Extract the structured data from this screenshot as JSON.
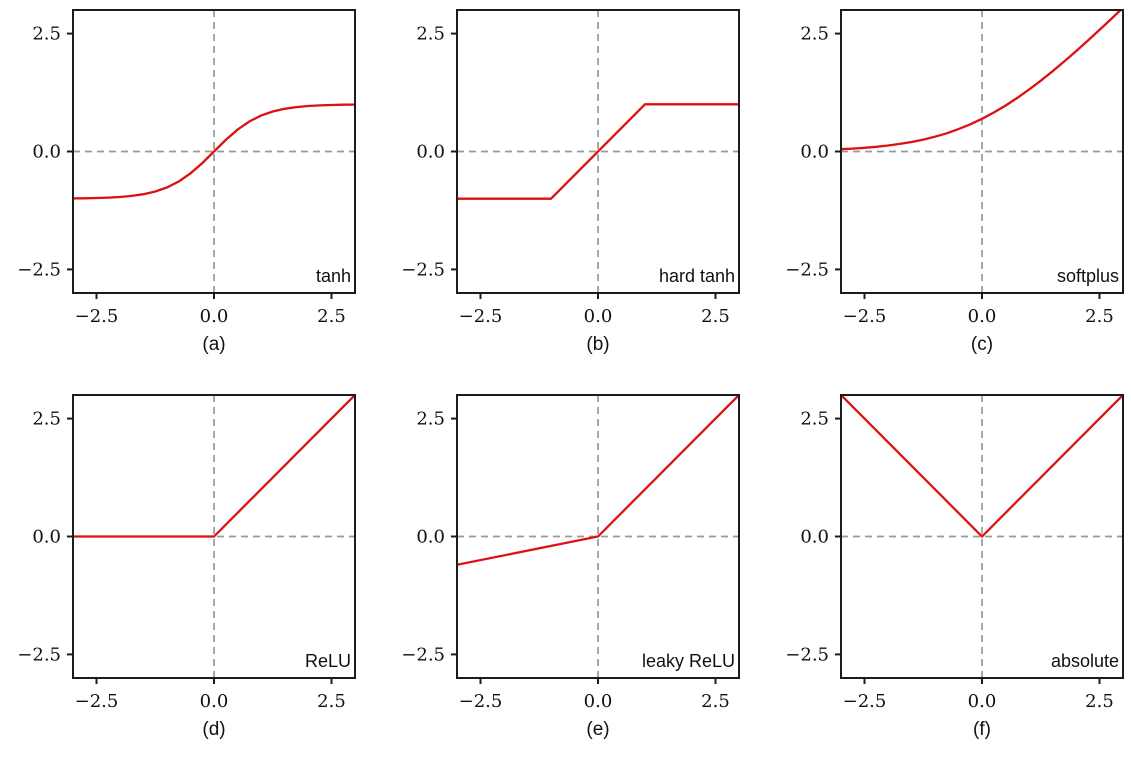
{
  "figure": {
    "background": "#ffffff"
  },
  "style": {
    "curve_color": "#dd1111",
    "dash_color": "#999999",
    "spine_color": "#1c1c1c",
    "text_color": "#111111"
  },
  "axes": {
    "xlim": [
      -3,
      3
    ],
    "ylim": [
      -3,
      3
    ],
    "grid": "dashed zero lines only",
    "xticks": [
      {
        "value": -2.5,
        "label": "−2.5"
      },
      {
        "value": 0.0,
        "label": "0.0"
      },
      {
        "value": 2.5,
        "label": "2.5"
      }
    ],
    "yticks": [
      {
        "value": 2.5,
        "label": "2.5"
      },
      {
        "value": 0.0,
        "label": "0.0"
      },
      {
        "value": -2.5,
        "label": "−2.5"
      }
    ]
  },
  "chart_data": [
    {
      "type": "line",
      "name": "tanh",
      "caption": "(a)",
      "label": "tanh",
      "points": [
        [
          -3,
          -0.9951
        ],
        [
          -2.75,
          -0.9919
        ],
        [
          -2.5,
          -0.9866
        ],
        [
          -2.25,
          -0.978
        ],
        [
          -2,
          -0.964
        ],
        [
          -1.75,
          -0.9414
        ],
        [
          -1.5,
          -0.9051
        ],
        [
          -1.25,
          -0.8483
        ],
        [
          -1,
          -0.7616
        ],
        [
          -0.75,
          -0.6351
        ],
        [
          -0.5,
          -0.4621
        ],
        [
          -0.25,
          -0.2449
        ],
        [
          0,
          0
        ],
        [
          0.25,
          0.2449
        ],
        [
          0.5,
          0.4621
        ],
        [
          0.75,
          0.6351
        ],
        [
          1,
          0.7616
        ],
        [
          1.25,
          0.8483
        ],
        [
          1.5,
          0.9051
        ],
        [
          1.75,
          0.9414
        ],
        [
          2,
          0.964
        ],
        [
          2.25,
          0.978
        ],
        [
          2.5,
          0.9866
        ],
        [
          2.75,
          0.9919
        ],
        [
          3,
          0.9951
        ]
      ]
    },
    {
      "type": "line",
      "name": "hard tanh",
      "caption": "(b)",
      "label": "hard tanh",
      "points": [
        [
          -3,
          -1
        ],
        [
          -1,
          -1
        ],
        [
          1,
          1
        ],
        [
          3,
          1
        ]
      ]
    },
    {
      "type": "line",
      "name": "softplus",
      "caption": "(c)",
      "label": "softplus",
      "points": [
        [
          -3,
          0.0486
        ],
        [
          -2.75,
          0.0619
        ],
        [
          -2.5,
          0.0789
        ],
        [
          -2.25,
          0.1002
        ],
        [
          -2,
          0.1269
        ],
        [
          -1.75,
          0.1602
        ],
        [
          -1.5,
          0.2014
        ],
        [
          -1.25,
          0.2519
        ],
        [
          -1,
          0.3133
        ],
        [
          -0.75,
          0.3868
        ],
        [
          -0.5,
          0.4741
        ],
        [
          -0.25,
          0.576
        ],
        [
          0,
          0.6931
        ],
        [
          0.25,
          0.826
        ],
        [
          0.5,
          0.9741
        ],
        [
          0.75,
          1.1368
        ],
        [
          1,
          1.3133
        ],
        [
          1.25,
          1.5019
        ],
        [
          1.5,
          1.7014
        ],
        [
          1.75,
          1.9102
        ],
        [
          2,
          2.1269
        ],
        [
          2.25,
          2.3502
        ],
        [
          2.5,
          2.5789
        ],
        [
          2.75,
          2.8119
        ],
        [
          3,
          3.0486
        ]
      ]
    },
    {
      "type": "line",
      "name": "ReLU",
      "caption": "(d)",
      "label": "ReLU",
      "points": [
        [
          -3,
          0
        ],
        [
          0,
          0
        ],
        [
          3,
          3
        ]
      ]
    },
    {
      "type": "line",
      "name": "leaky ReLU",
      "caption": "(e)",
      "label": "leaky ReLU",
      "points": [
        [
          -3,
          -0.6
        ],
        [
          0,
          0
        ],
        [
          3,
          3
        ]
      ]
    },
    {
      "type": "line",
      "name": "absolute",
      "caption": "(f)",
      "label": "absolute",
      "points": [
        [
          -3,
          3
        ],
        [
          0,
          0
        ],
        [
          3,
          3
        ]
      ]
    }
  ]
}
